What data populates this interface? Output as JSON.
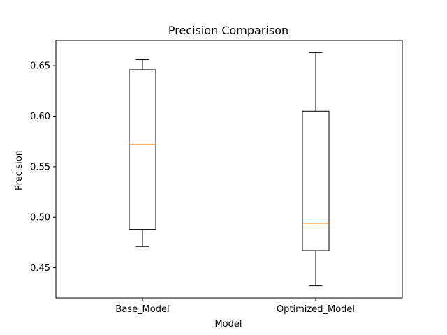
{
  "chart_data": {
    "type": "box",
    "title": "Precision Comparison",
    "xlabel": "Model",
    "ylabel": "Precision",
    "ylim": [
      0.42,
      0.675
    ],
    "yticks": [
      0.45,
      0.5,
      0.55,
      0.6,
      0.65
    ],
    "ytick_labels": [
      "0.45",
      "0.50",
      "0.55",
      "0.60",
      "0.65"
    ],
    "categories": [
      "Base_Model",
      "Optimized_Model"
    ],
    "boxes": [
      {
        "name": "Base_Model",
        "whisker_low": 0.471,
        "q1": 0.488,
        "median": 0.572,
        "q3": 0.646,
        "whisker_high": 0.656
      },
      {
        "name": "Optimized_Model",
        "whisker_low": 0.432,
        "q1": 0.467,
        "median": 0.494,
        "q3": 0.605,
        "whisker_high": 0.663
      }
    ],
    "grid": false,
    "colors": {
      "box": "#000000",
      "median": "#ff7f0e"
    }
  }
}
